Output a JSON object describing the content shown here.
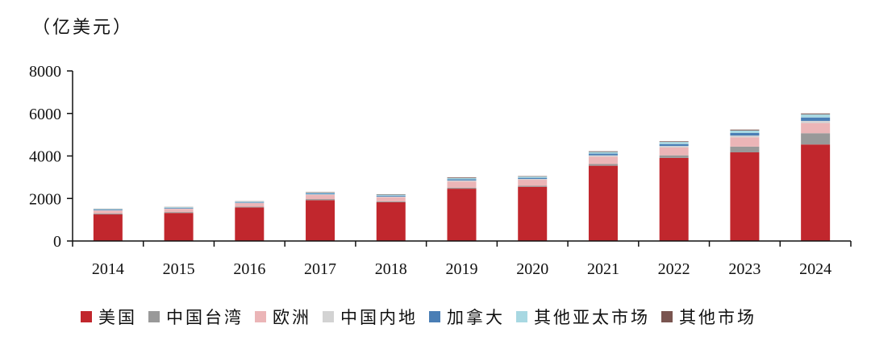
{
  "chart_data": {
    "type": "bar",
    "stacked": true,
    "unit_label": "（亿美元）",
    "categories": [
      "2014",
      "2015",
      "2016",
      "2017",
      "2018",
      "2019",
      "2020",
      "2021",
      "2022",
      "2023",
      "2024"
    ],
    "ylim": [
      0,
      8000
    ],
    "yticks": [
      0,
      2000,
      4000,
      6000,
      8000
    ],
    "legend_position": "bottom",
    "series": [
      {
        "name": "美国",
        "color": "#C1272D",
        "values": [
          1250,
          1320,
          1580,
          1920,
          1820,
          2460,
          2550,
          3540,
          3910,
          4170,
          4540
        ]
      },
      {
        "name": "中国台湾",
        "color": "#999999",
        "values": [
          40,
          40,
          40,
          50,
          40,
          50,
          50,
          80,
          120,
          270,
          530
        ]
      },
      {
        "name": "欧洲",
        "color": "#EBB5B7",
        "values": [
          140,
          150,
          160,
          200,
          200,
          290,
          280,
          350,
          370,
          440,
          480
        ]
      },
      {
        "name": "中国内地",
        "color": "#D3D3D3",
        "values": [
          20,
          20,
          20,
          30,
          30,
          50,
          40,
          60,
          70,
          80,
          100
        ]
      },
      {
        "name": "加拿大",
        "color": "#4A7EB5",
        "values": [
          30,
          30,
          30,
          40,
          40,
          50,
          50,
          80,
          90,
          120,
          160
        ]
      },
      {
        "name": "其他亚太市场",
        "color": "#A8D8E2",
        "values": [
          30,
          30,
          30,
          40,
          50,
          60,
          60,
          80,
          100,
          120,
          150
        ]
      },
      {
        "name": "其他市场",
        "color": "#7A5550",
        "values": [
          10,
          10,
          10,
          20,
          20,
          30,
          20,
          30,
          30,
          40,
          40
        ]
      }
    ]
  }
}
